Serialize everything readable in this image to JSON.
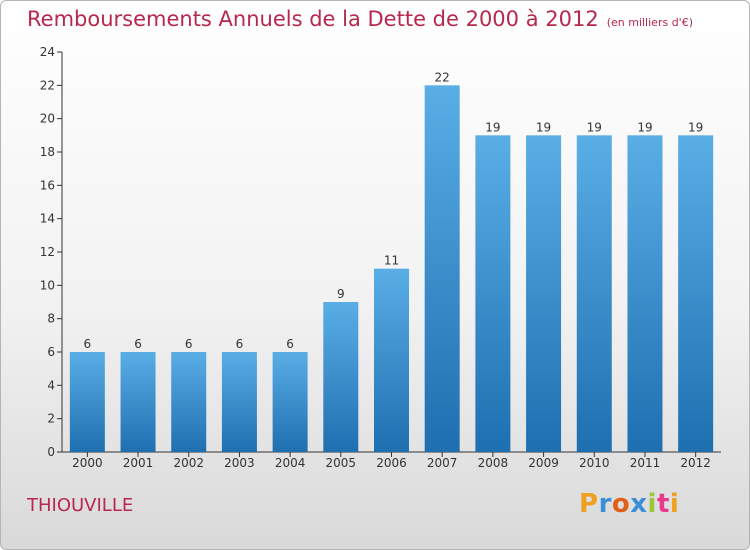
{
  "header": {
    "title": "Remboursements Annuels de la Dette de 2000 à 2012",
    "unit": "(en milliers d'€)"
  },
  "footer": {
    "city": "THIOUVILLE",
    "logo": "Proxiti"
  },
  "colors": {
    "bar_top": "#5aaee6",
    "bar_bottom": "#1e6fb0",
    "title": "#b8284d",
    "axis": "#333333"
  },
  "chart_data": {
    "type": "bar",
    "title": "Remboursements Annuels de la Dette de 2000 à 2012",
    "ylabel": "en milliers d'€",
    "xlabel": "",
    "categories": [
      "2000",
      "2001",
      "2002",
      "2003",
      "2004",
      "2005",
      "2006",
      "2007",
      "2008",
      "2009",
      "2010",
      "2011",
      "2012"
    ],
    "values": [
      6,
      6,
      6,
      6,
      6,
      9,
      11,
      22,
      19,
      19,
      19,
      19,
      19
    ],
    "ylim": [
      0,
      24
    ],
    "yticks": [
      0,
      2,
      4,
      6,
      8,
      10,
      12,
      14,
      16,
      18,
      20,
      22,
      24
    ],
    "grid": false
  }
}
